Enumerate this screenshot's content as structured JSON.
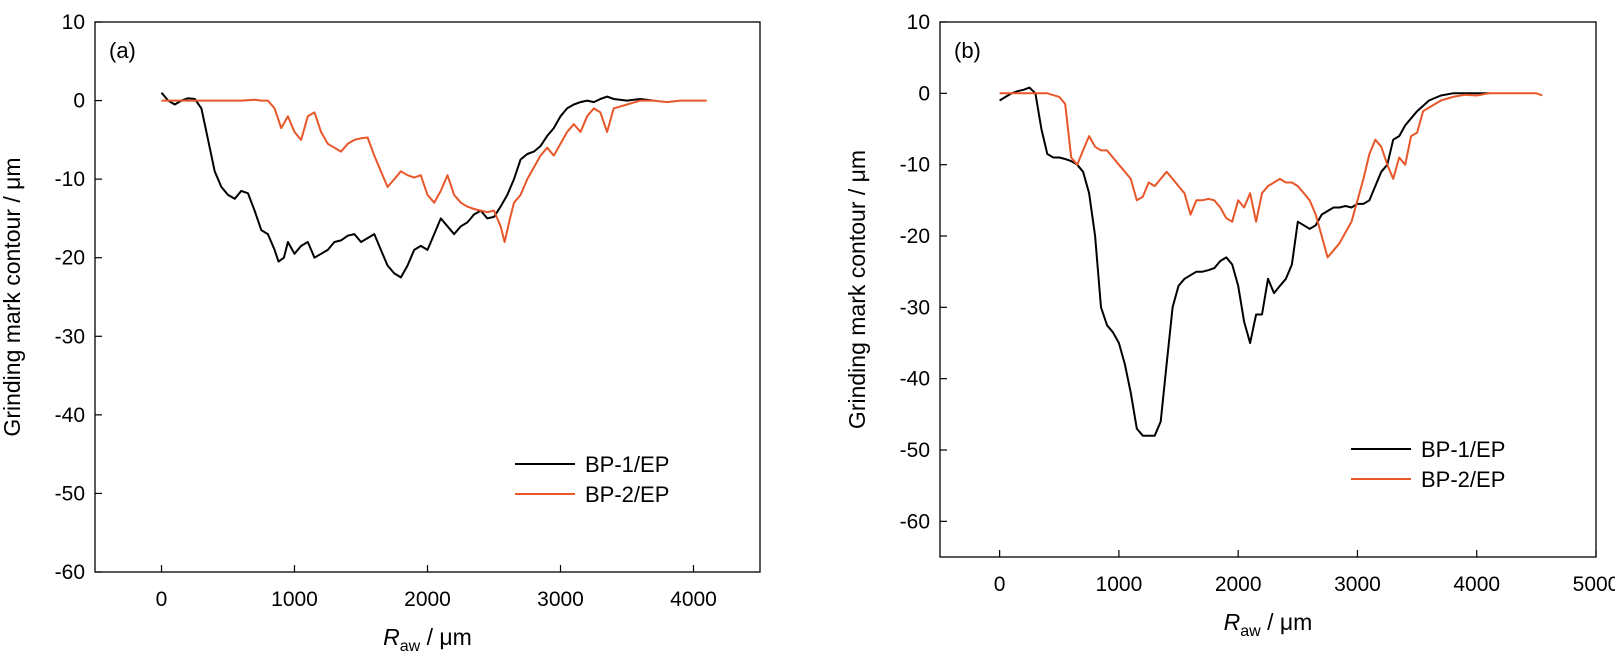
{
  "chart_data": [
    {
      "type": "line",
      "panel_label": "(a)",
      "xlabel_main": "R",
      "xlabel_sub": "aw",
      "xlabel_unit": " / μm",
      "ylabel": "Grinding mark contour / μm",
      "xlim": [
        -500,
        4500
      ],
      "ylim": [
        -60,
        10
      ],
      "xticks": [
        0,
        1000,
        2000,
        3000,
        4000
      ],
      "yticks": [
        10,
        0,
        -10,
        -20,
        -30,
        -40,
        -50,
        -60
      ],
      "legend_position": "lower-right",
      "series": [
        {
          "name": "BP-1/EP",
          "color": "#000000",
          "x": [
            0,
            50,
            100,
            150,
            200,
            250,
            300,
            350,
            400,
            450,
            500,
            550,
            600,
            650,
            700,
            750,
            800,
            850,
            880,
            920,
            950,
            1000,
            1050,
            1100,
            1150,
            1200,
            1250,
            1300,
            1350,
            1400,
            1450,
            1500,
            1550,
            1600,
            1650,
            1700,
            1750,
            1800,
            1850,
            1900,
            1950,
            2000,
            2050,
            2100,
            2150,
            2200,
            2250,
            2300,
            2350,
            2400,
            2450,
            2500,
            2550,
            2600,
            2650,
            2700,
            2750,
            2800,
            2850,
            2900,
            2950,
            3000,
            3050,
            3100,
            3150,
            3200,
            3250,
            3300,
            3350,
            3400,
            3500,
            3600,
            3700
          ],
          "y": [
            1,
            0,
            -0.5,
            0,
            0.3,
            0.2,
            -1,
            -5,
            -9,
            -11,
            -12,
            -12.5,
            -11.5,
            -11.8,
            -14,
            -16.5,
            -17,
            -19,
            -20.5,
            -20,
            -18,
            -19.5,
            -18.5,
            -18,
            -20,
            -19.5,
            -19,
            -18,
            -17.8,
            -17.2,
            -17,
            -18,
            -17.5,
            -17,
            -19,
            -21,
            -22,
            -22.5,
            -21,
            -19,
            -18.5,
            -19,
            -17,
            -15,
            -16,
            -17,
            -16,
            -15.5,
            -14.5,
            -14,
            -15,
            -14.8,
            -13.5,
            -12,
            -10,
            -7.5,
            -6.8,
            -6.5,
            -5.8,
            -4.5,
            -3.5,
            -2,
            -1,
            -0.5,
            -0.2,
            0,
            -0.2,
            0.2,
            0.5,
            0.2,
            0,
            0.2,
            0
          ]
        },
        {
          "name": "BP-2/EP",
          "color": "#e8572a",
          "x": [
            0,
            100,
            200,
            300,
            400,
            500,
            600,
            700,
            750,
            800,
            850,
            900,
            950,
            1000,
            1050,
            1100,
            1150,
            1200,
            1250,
            1300,
            1350,
            1400,
            1450,
            1500,
            1550,
            1600,
            1650,
            1700,
            1750,
            1800,
            1850,
            1900,
            1950,
            2000,
            2050,
            2100,
            2150,
            2200,
            2250,
            2300,
            2350,
            2400,
            2450,
            2500,
            2550,
            2580,
            2620,
            2650,
            2700,
            2750,
            2800,
            2850,
            2900,
            2950,
            3000,
            3050,
            3100,
            3150,
            3200,
            3250,
            3300,
            3350,
            3400,
            3500,
            3600,
            3700,
            3800,
            3900,
            4000,
            4100
          ],
          "y": [
            0,
            0,
            0,
            0,
            0,
            0,
            0,
            0.1,
            0,
            0,
            -1,
            -3.5,
            -2,
            -4,
            -5,
            -2,
            -1.5,
            -4,
            -5.5,
            -6,
            -6.5,
            -5.5,
            -5,
            -4.8,
            -4.7,
            -7,
            -9,
            -11,
            -10,
            -9,
            -9.5,
            -9.8,
            -9.5,
            -12,
            -13,
            -11.5,
            -9.5,
            -12,
            -13,
            -13.5,
            -13.8,
            -14,
            -14.2,
            -14,
            -16,
            -18,
            -15,
            -13,
            -12,
            -10,
            -8.5,
            -7,
            -6,
            -7,
            -5.5,
            -4,
            -3,
            -4,
            -2,
            -1,
            -1.5,
            -4,
            -1,
            -0.5,
            0,
            0,
            -0.2,
            0,
            0,
            0
          ]
        }
      ]
    },
    {
      "type": "line",
      "panel_label": "(b)",
      "xlabel_main": "R",
      "xlabel_sub": "aw",
      "xlabel_unit": " / μm",
      "ylabel": "Grinding mark contour / μm",
      "xlim": [
        -500,
        5000
      ],
      "ylim": [
        -65,
        10
      ],
      "xticks": [
        0,
        1000,
        2000,
        3000,
        4000,
        5000
      ],
      "yticks": [
        10,
        0,
        -10,
        -20,
        -30,
        -40,
        -50,
        -60
      ],
      "legend_position": "lower-right",
      "series": [
        {
          "name": "BP-1/EP",
          "color": "#000000",
          "x": [
            0,
            50,
            100,
            150,
            200,
            250,
            300,
            350,
            400,
            450,
            500,
            550,
            600,
            650,
            700,
            750,
            800,
            850,
            900,
            950,
            1000,
            1050,
            1100,
            1150,
            1200,
            1250,
            1300,
            1350,
            1400,
            1450,
            1500,
            1550,
            1600,
            1650,
            1700,
            1750,
            1800,
            1850,
            1900,
            1950,
            2000,
            2050,
            2100,
            2150,
            2200,
            2250,
            2300,
            2350,
            2400,
            2450,
            2500,
            2550,
            2600,
            2650,
            2700,
            2750,
            2800,
            2850,
            2900,
            2950,
            3000,
            3050,
            3100,
            3150,
            3200,
            3250,
            3300,
            3350,
            3400,
            3450,
            3500,
            3600,
            3700,
            3800,
            3900,
            4000,
            4100
          ],
          "y": [
            -1,
            -0.5,
            0,
            0.3,
            0.5,
            0.8,
            0,
            -5,
            -8.5,
            -9,
            -9,
            -9.2,
            -9.5,
            -10,
            -11,
            -14,
            -20,
            -30,
            -32.5,
            -33.5,
            -35,
            -38,
            -42,
            -47,
            -48,
            -48,
            -48,
            -46,
            -38,
            -30,
            -27,
            -26,
            -25.5,
            -25,
            -25,
            -24.8,
            -24.5,
            -23.5,
            -23,
            -24,
            -27,
            -32,
            -35,
            -31,
            -31,
            -26,
            -28,
            -27,
            -26,
            -24,
            -18,
            -18.5,
            -19,
            -18.5,
            -17,
            -16.5,
            -16,
            -16,
            -15.8,
            -16,
            -15.5,
            -15.5,
            -15,
            -13,
            -11,
            -10,
            -6.5,
            -6,
            -4.5,
            -3.5,
            -2.5,
            -1,
            -0.3,
            0,
            0,
            0,
            0
          ]
        },
        {
          "name": "BP-2/EP",
          "color": "#e8572a",
          "x": [
            0,
            100,
            200,
            300,
            400,
            500,
            550,
            600,
            650,
            700,
            750,
            800,
            850,
            900,
            950,
            1000,
            1050,
            1100,
            1150,
            1200,
            1250,
            1300,
            1350,
            1400,
            1450,
            1500,
            1550,
            1600,
            1650,
            1700,
            1750,
            1800,
            1850,
            1900,
            1950,
            2000,
            2050,
            2100,
            2150,
            2200,
            2250,
            2300,
            2350,
            2400,
            2450,
            2500,
            2550,
            2600,
            2650,
            2700,
            2750,
            2800,
            2850,
            2900,
            2950,
            3000,
            3050,
            3100,
            3150,
            3200,
            3250,
            3300,
            3350,
            3400,
            3450,
            3500,
            3550,
            3600,
            3650,
            3700,
            3800,
            3900,
            4000,
            4100,
            4200,
            4300,
            4400,
            4500,
            4550
          ],
          "y": [
            0,
            0,
            0,
            0,
            0,
            -0.5,
            -1.5,
            -9,
            -10,
            -8,
            -6,
            -7.5,
            -8,
            -8,
            -9,
            -10,
            -11,
            -12,
            -15,
            -14.5,
            -12.5,
            -13,
            -12,
            -11,
            -12,
            -13,
            -14,
            -17,
            -15,
            -15,
            -14.8,
            -15,
            -16,
            -17.5,
            -18,
            -15,
            -16,
            -14,
            -18,
            -14,
            -13,
            -12.5,
            -12,
            -12.5,
            -12.5,
            -13,
            -14,
            -15,
            -17,
            -20,
            -23,
            -22,
            -21,
            -19.5,
            -18,
            -15,
            -12,
            -8.5,
            -6.5,
            -7.5,
            -10,
            -12,
            -9,
            -10,
            -6,
            -5.5,
            -2.5,
            -2,
            -1.5,
            -1,
            -0.5,
            -0.2,
            -0.3,
            0,
            0,
            0,
            0,
            0,
            -0.3
          ]
        }
      ]
    }
  ]
}
